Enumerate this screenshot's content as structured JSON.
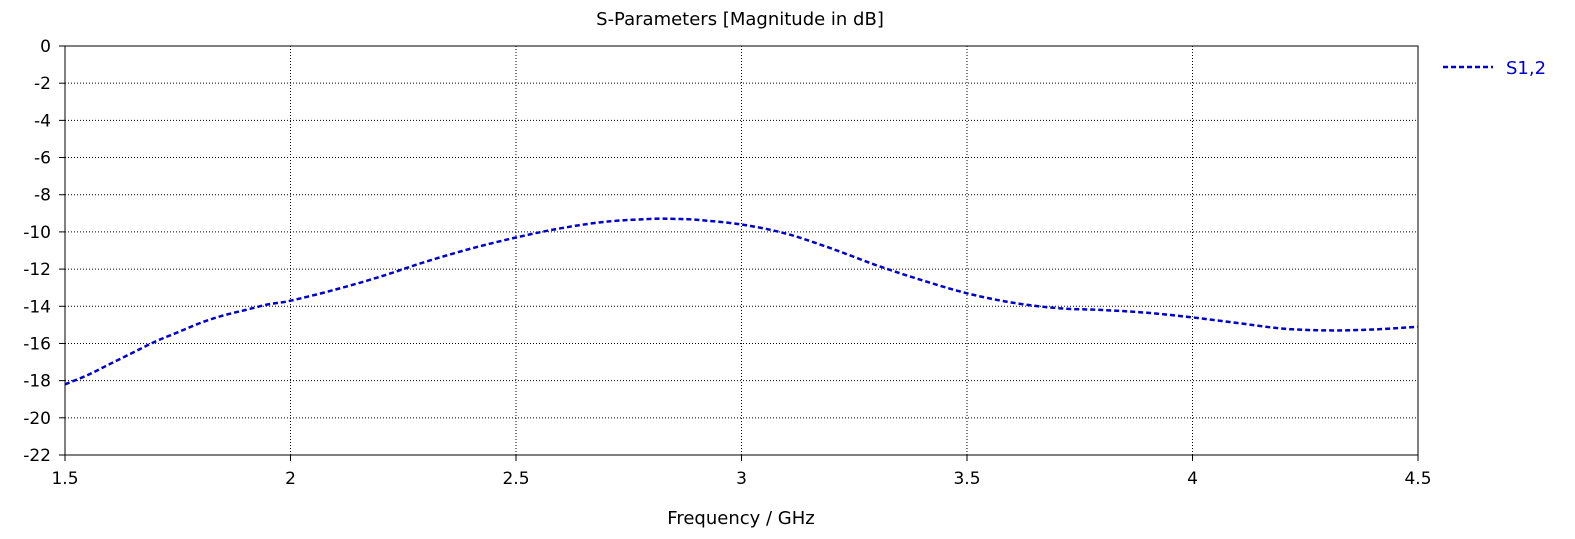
{
  "chart_data": {
    "type": "line",
    "title": "S-Parameters [Magnitude in dB]",
    "xlabel": "Frequency / GHz",
    "ylabel": "",
    "xlim": [
      1.5,
      4.5
    ],
    "ylim": [
      -22,
      0
    ],
    "x_ticks": [
      1.5,
      2,
      2.5,
      3,
      3.5,
      4,
      4.5
    ],
    "y_ticks": [
      0,
      -2,
      -4,
      -6,
      -8,
      -10,
      -12,
      -14,
      -16,
      -18,
      -20,
      -22
    ],
    "grid": true,
    "grid_style": "dotted",
    "legend_position": "top-right, outside plot",
    "series": [
      {
        "name": "S1,2",
        "color": "#0000cc",
        "line_style": "dashed",
        "x": [
          1.5,
          1.55,
          1.6,
          1.65,
          1.7,
          1.75,
          1.8,
          1.85,
          1.9,
          1.95,
          2.0,
          2.1,
          2.2,
          2.3,
          2.4,
          2.5,
          2.6,
          2.7,
          2.8,
          2.85,
          2.9,
          3.0,
          3.1,
          3.2,
          3.3,
          3.4,
          3.5,
          3.6,
          3.7,
          3.8,
          3.9,
          4.0,
          4.1,
          4.2,
          4.3,
          4.4,
          4.5
        ],
        "y": [
          -18.2,
          -17.7,
          -17.1,
          -16.5,
          -15.9,
          -15.4,
          -14.9,
          -14.5,
          -14.2,
          -13.9,
          -13.7,
          -13.1,
          -12.4,
          -11.6,
          -10.9,
          -10.3,
          -9.8,
          -9.45,
          -9.3,
          -9.3,
          -9.35,
          -9.6,
          -10.1,
          -10.9,
          -11.8,
          -12.6,
          -13.3,
          -13.8,
          -14.1,
          -14.2,
          -14.35,
          -14.6,
          -14.9,
          -15.2,
          -15.3,
          -15.25,
          -15.1
        ]
      }
    ]
  }
}
